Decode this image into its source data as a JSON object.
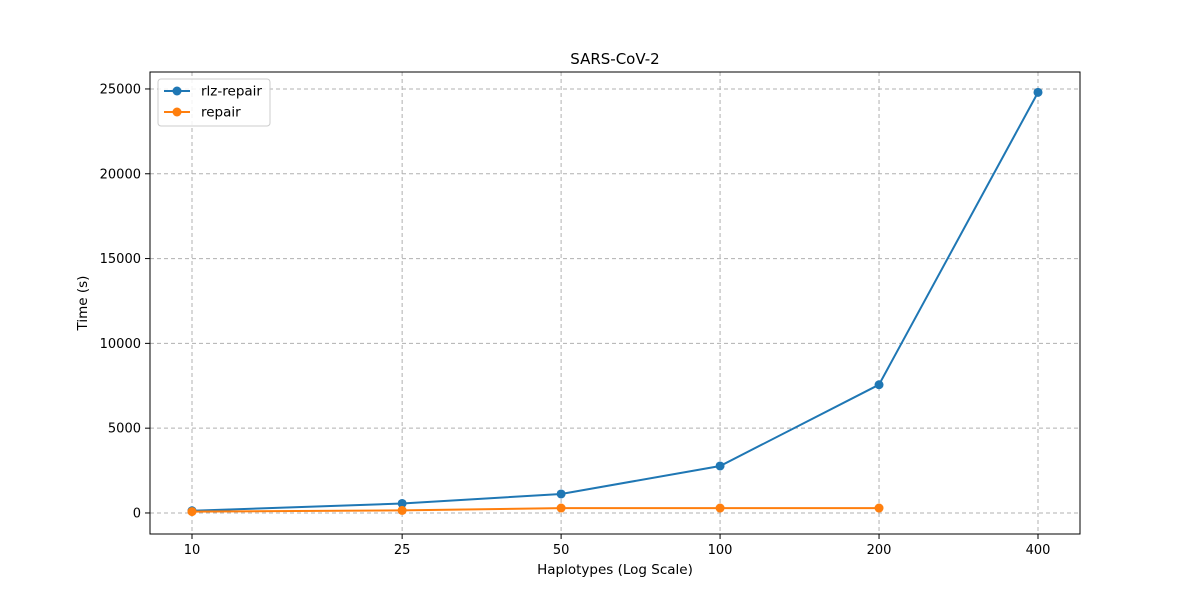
{
  "chart_data": {
    "type": "line",
    "title": "SARS-CoV-2",
    "xlabel": "Haplotypes (Log Scale)",
    "ylabel": "Time (s)",
    "x_scale": "log",
    "x": [
      10,
      25,
      50,
      100,
      200,
      400
    ],
    "x_tick_labels": [
      "10",
      "25",
      "50",
      "100",
      "200",
      "400"
    ],
    "y_ticks": [
      0,
      5000,
      10000,
      15000,
      20000,
      25000
    ],
    "ylim": [
      -1240,
      26000
    ],
    "grid": true,
    "legend_position": "top-left",
    "series": [
      {
        "name": "rlz-repair",
        "color": "#1f77b4",
        "x": [
          10,
          25,
          50,
          100,
          200,
          400
        ],
        "values": [
          130,
          560,
          1120,
          2770,
          7560,
          24800
        ]
      },
      {
        "name": "repair",
        "color": "#ff7f0e",
        "x": [
          10,
          25,
          50,
          100,
          200
        ],
        "values": [
          80,
          150,
          290,
          290,
          290
        ]
      }
    ]
  }
}
